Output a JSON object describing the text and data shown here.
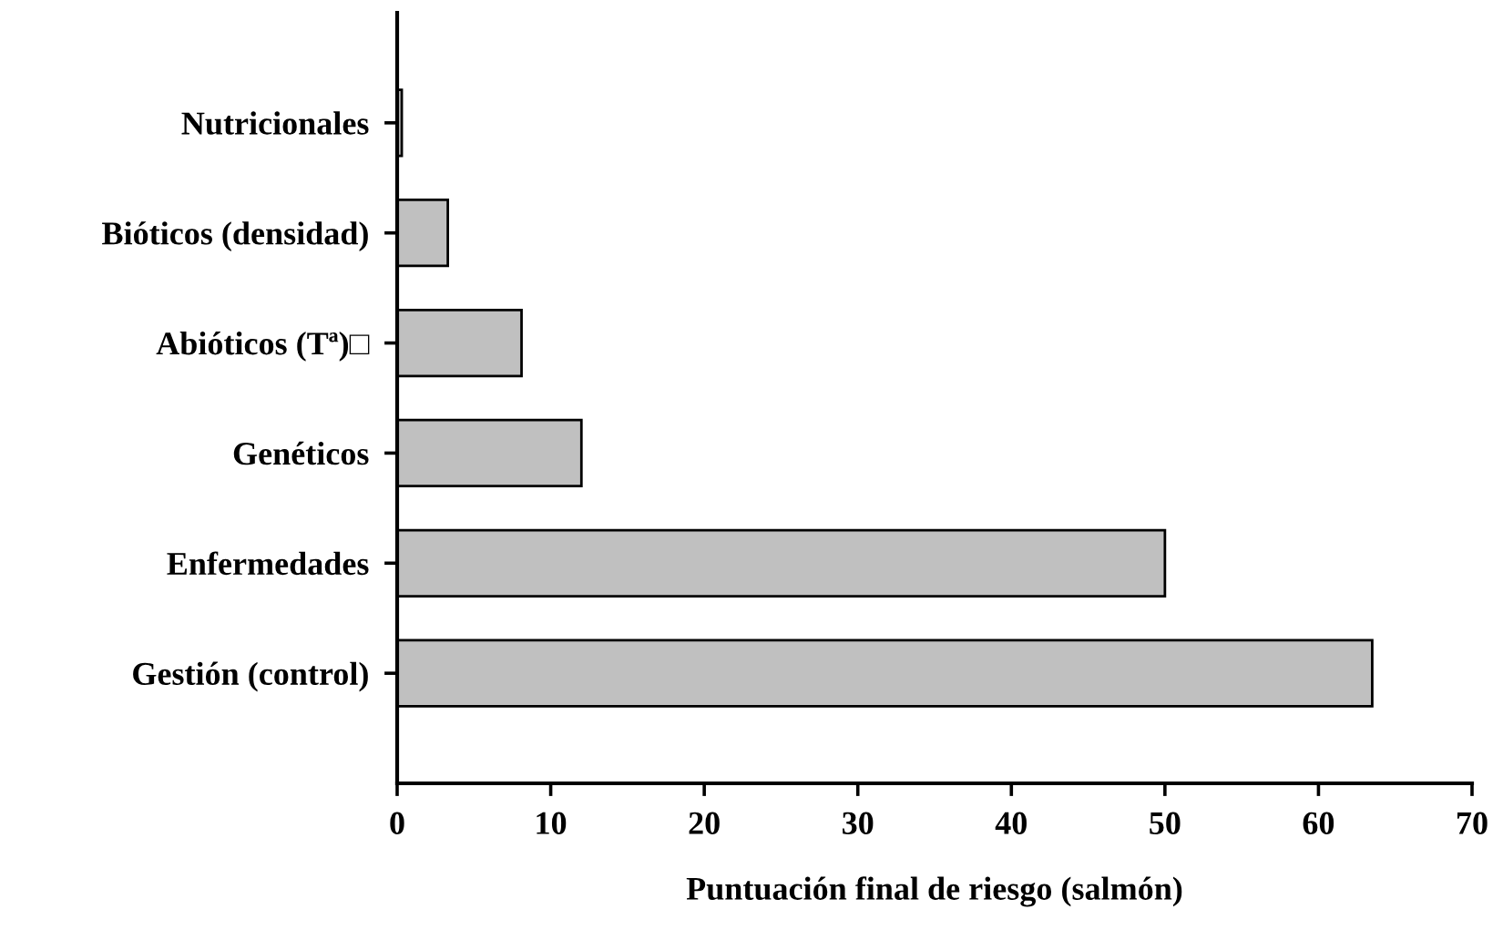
{
  "chart_data": {
    "type": "bar",
    "orientation": "horizontal",
    "xlabel": "Puntuación final de riesgo (salmón)",
    "categories": [
      "Nutricionales",
      "Bióticos (densidad)",
      "Abióticos (Tª)□",
      "Genéticos",
      "Enfermedades",
      "Gestión (control)"
    ],
    "values": [
      0.3,
      3.3,
      8.1,
      12,
      50,
      63.5
    ],
    "color": "#c0c0c0",
    "xlim": [
      0,
      70
    ],
    "xticks": [
      0,
      10,
      20,
      30,
      40,
      50,
      60,
      70
    ],
    "grid": false,
    "legend": false
  }
}
